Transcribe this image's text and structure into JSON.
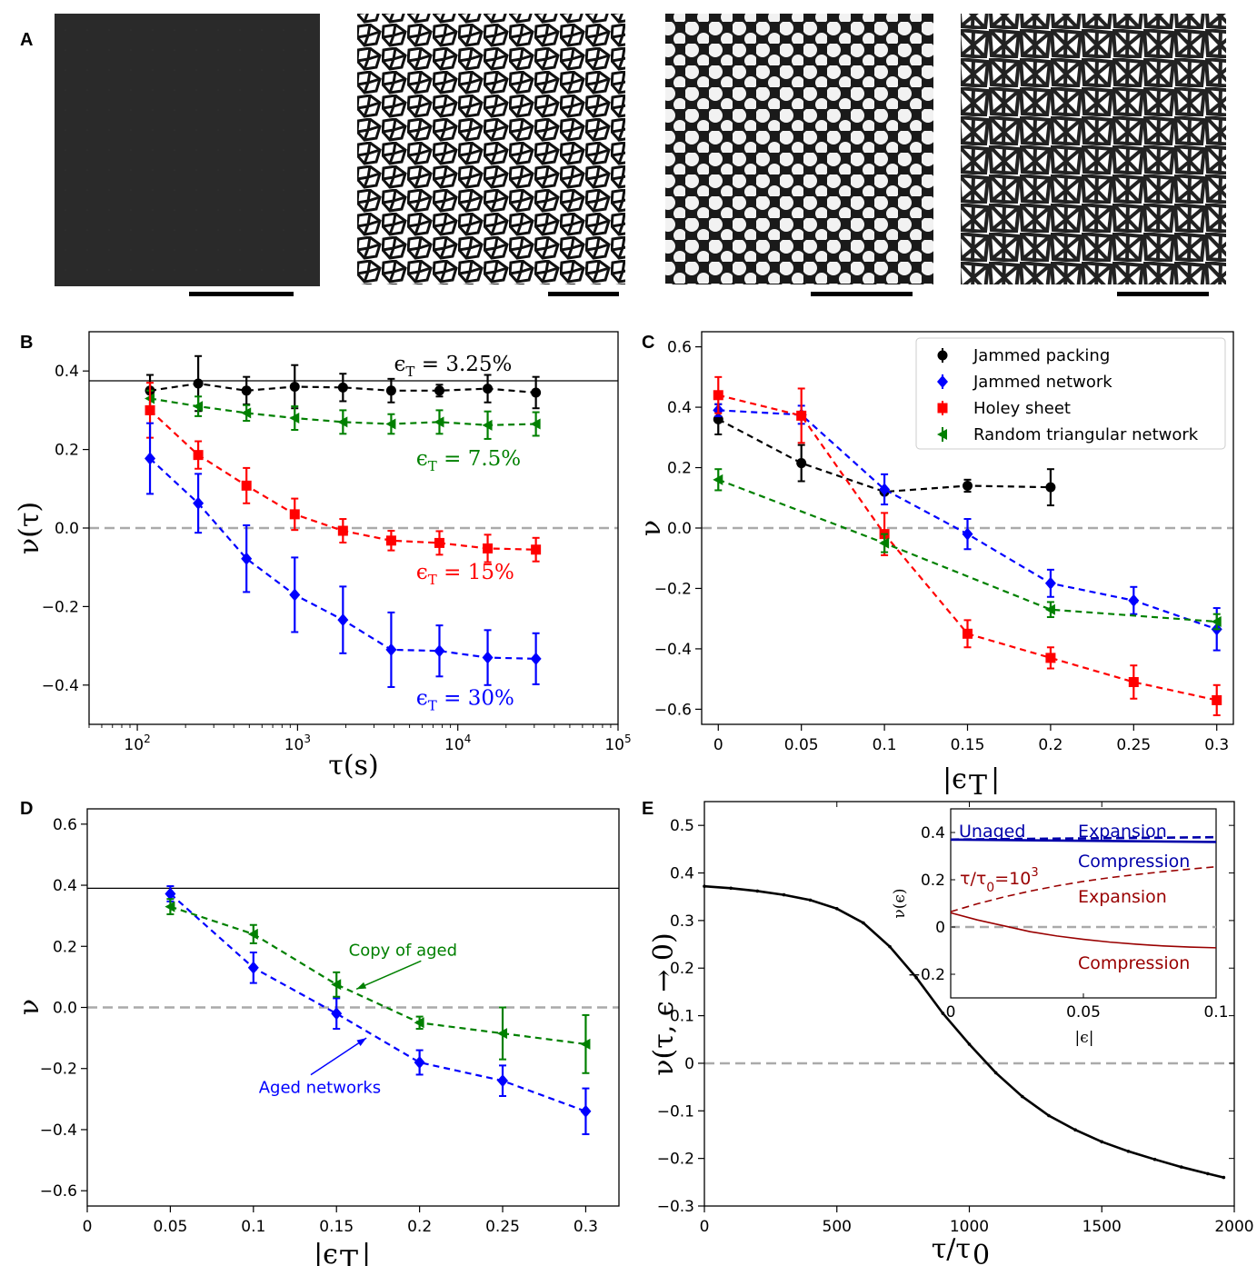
{
  "panel_labels": [
    "A",
    "B",
    "C",
    "D",
    "E"
  ],
  "colors": {
    "black": "#000000",
    "blue": "#0000ff",
    "red": "#ff0000",
    "green": "#008000",
    "gray": "#aaaaaa",
    "darkblue": "#0000aa",
    "darkred": "#990000"
  },
  "chart_data": [
    {
      "panel": "B",
      "type": "line",
      "xscale": "log",
      "xlim": [
        50,
        100000
      ],
      "ylim": [
        -0.5,
        0.5
      ],
      "xlabel": "τ(s)",
      "ylabel": "ν(τ)",
      "xticks": [
        100,
        1000,
        10000,
        100000
      ],
      "xtick_labels": [
        {
          "b": "10",
          "e": "2"
        },
        {
          "b": "10",
          "e": "3"
        },
        {
          "b": "10",
          "e": "4"
        },
        {
          "b": "10",
          "e": "5"
        }
      ],
      "yticks": [
        -0.4,
        -0.2,
        0.0,
        0.2,
        0.4
      ],
      "ytick_labels": [
        "−0.4",
        "−0.2",
        "0.0",
        "0.2",
        "0.4"
      ],
      "hline_solid": 0.375,
      "hline_dashed": 0.0,
      "x": [
        120,
        240,
        480,
        960,
        1920,
        3840,
        7680,
        15360,
        30720
      ],
      "series": [
        {
          "label": "ϵT = 3.25%",
          "color": "black",
          "marker": "circle",
          "values": [
            0.35,
            0.368,
            0.35,
            0.36,
            0.358,
            0.35,
            0.35,
            0.355,
            0.345
          ],
          "errors": [
            0.04,
            0.07,
            0.035,
            0.055,
            0.035,
            0.03,
            0.015,
            0.035,
            0.04
          ]
        },
        {
          "label": "ϵT = 7.5%",
          "color": "green",
          "marker": "triangle",
          "values": [
            0.33,
            0.31,
            0.293,
            0.28,
            0.27,
            0.265,
            0.27,
            0.262,
            0.265
          ],
          "errors": [
            0.02,
            0.025,
            0.02,
            0.03,
            0.03,
            0.025,
            0.03,
            0.035,
            0.03
          ]
        },
        {
          "label": "ϵT = 15%",
          "color": "red",
          "marker": "square",
          "values": [
            0.3,
            0.186,
            0.108,
            0.035,
            -0.007,
            -0.032,
            -0.038,
            -0.052,
            -0.055
          ],
          "errors": [
            0.07,
            0.035,
            0.045,
            0.04,
            0.03,
            0.025,
            0.03,
            0.035,
            0.03
          ]
        },
        {
          "label": "ϵT = 30%",
          "color": "blue",
          "marker": "diamond",
          "values": [
            0.177,
            0.063,
            -0.078,
            -0.17,
            -0.234,
            -0.31,
            -0.313,
            -0.33,
            -0.333
          ],
          "errors": [
            0.09,
            0.075,
            0.085,
            0.095,
            0.085,
            0.095,
            0.065,
            0.07,
            0.065
          ]
        }
      ],
      "annotations": [
        {
          "base": "ϵ",
          "sub": "T",
          "value": " = 3.25%",
          "color": "black",
          "x": 4000,
          "y": 0.4
        },
        {
          "base": "ϵ",
          "sub": "T",
          "value": " = 7.5%",
          "color": "green",
          "x": 5500,
          "y": 0.16
        },
        {
          "base": "ϵ",
          "sub": "T",
          "value": " = 15%",
          "color": "red",
          "x": 5500,
          "y": -0.13
        },
        {
          "base": "ϵ",
          "sub": "T",
          "value": " = 30%",
          "color": "blue",
          "x": 5500,
          "y": -0.45
        }
      ]
    },
    {
      "panel": "C",
      "type": "line",
      "xlim": [
        -0.01,
        0.31
      ],
      "ylim": [
        -0.65,
        0.65
      ],
      "xlabel": "|ϵT|",
      "ylabel": "ν",
      "xticks": [
        0,
        0.05,
        0.1,
        0.15,
        0.2,
        0.25,
        0.3
      ],
      "xtick_labels": [
        "0",
        "0.05",
        "0.1",
        "0.15",
        "0.2",
        "0.25",
        "0.3"
      ],
      "yticks": [
        -0.6,
        -0.4,
        -0.2,
        0.0,
        0.2,
        0.4,
        0.6
      ],
      "ytick_labels": [
        "−0.6",
        "−0.4",
        "−0.2",
        "0.0",
        "0.2",
        "0.4",
        "0.6"
      ],
      "hline_dashed": 0.0,
      "legend": "top-right",
      "series": [
        {
          "name": "Jammed packing",
          "color": "black",
          "marker": "circle",
          "x": [
            0,
            0.05,
            0.1,
            0.15,
            0.2
          ],
          "values": [
            0.36,
            0.215,
            0.12,
            0.14,
            0.135
          ],
          "errors": [
            0.05,
            0.06,
            0.0,
            0.02,
            0.06
          ]
        },
        {
          "name": "Jammed network",
          "color": "blue",
          "marker": "diamond",
          "x": [
            0,
            0.05,
            0.1,
            0.15,
            0.2,
            0.25,
            0.3
          ],
          "values": [
            0.39,
            0.375,
            0.128,
            -0.02,
            -0.183,
            -0.24,
            -0.335
          ],
          "errors": [
            0.02,
            0.03,
            0.05,
            0.05,
            0.045,
            0.045,
            0.07
          ]
        },
        {
          "name": "Holey sheet",
          "color": "red",
          "marker": "square",
          "x": [
            0,
            0.05,
            0.1,
            0.15,
            0.2,
            0.25,
            0.3
          ],
          "values": [
            0.44,
            0.372,
            -0.02,
            -0.35,
            -0.43,
            -0.51,
            -0.57
          ],
          "errors": [
            0.06,
            0.09,
            0.07,
            0.045,
            0.035,
            0.055,
            0.05
          ]
        },
        {
          "name": "Random triangular network",
          "color": "green",
          "marker": "triangle",
          "x": [
            0,
            0.1,
            0.2,
            0.3
          ],
          "values": [
            0.16,
            -0.05,
            -0.27,
            -0.31
          ],
          "errors": [
            0.035,
            0.03,
            0.025,
            0.025
          ]
        }
      ]
    },
    {
      "panel": "D",
      "type": "line",
      "xlim": [
        0,
        0.32
      ],
      "ylim": [
        -0.65,
        0.65
      ],
      "xlabel": "|ϵT|",
      "ylabel": "ν",
      "xticks": [
        0,
        0.05,
        0.1,
        0.15,
        0.2,
        0.25,
        0.3
      ],
      "xtick_labels": [
        "0",
        "0.05",
        "0.1",
        "0.15",
        "0.2",
        "0.25",
        "0.3"
      ],
      "yticks": [
        -0.6,
        -0.4,
        -0.2,
        0.0,
        0.2,
        0.4,
        0.6
      ],
      "ytick_labels": [
        "−0.6",
        "−0.4",
        "−0.2",
        "0.0",
        "0.2",
        "0.4",
        "0.6"
      ],
      "hline_solid": 0.39,
      "hline_dashed": 0.0,
      "x": [
        0.05,
        0.1,
        0.15,
        0.2,
        0.25,
        0.3
      ],
      "series": [
        {
          "color": "blue",
          "marker": "diamond",
          "values": [
            0.372,
            0.13,
            -0.02,
            -0.18,
            -0.24,
            -0.34
          ],
          "errors": [
            0.025,
            0.05,
            0.05,
            0.04,
            0.05,
            0.075
          ]
        },
        {
          "color": "green",
          "marker": "triangle",
          "values": [
            0.33,
            0.24,
            0.075,
            -0.05,
            -0.085,
            -0.12
          ],
          "errors": [
            0.025,
            0.03,
            0.04,
            0.02,
            0.085,
            0.095
          ]
        }
      ],
      "annotations": [
        {
          "text": "Copy of aged",
          "color": "green",
          "x": 0.19,
          "y": 0.17,
          "arrow_to": [
            0.162,
            0.06
          ]
        },
        {
          "text": "Aged networks",
          "color": "blue",
          "x": 0.14,
          "y": -0.28,
          "arrow_to": [
            0.168,
            -0.1
          ]
        }
      ]
    },
    {
      "panel": "E",
      "type": "line",
      "xlim": [
        0,
        2000
      ],
      "ylim": [
        -0.3,
        0.55
      ],
      "xlabel": "τ/τ0",
      "ylabel": "ν(τ, ϵ → 0)",
      "xticks": [
        0,
        500,
        1000,
        1500,
        2000
      ],
      "xtick_labels": [
        "0",
        "500",
        "1000",
        "1500",
        "2000"
      ],
      "yticks": [
        -0.3,
        -0.2,
        -0.1,
        0,
        0.1,
        0.2,
        0.3,
        0.4,
        0.5
      ],
      "ytick_labels": [
        "−0.3",
        "−0.2",
        "−0.1",
        "0",
        "0.1",
        "0.2",
        "0.3",
        "0.4",
        "0.5"
      ],
      "hline_dashed": 0.0,
      "series": [
        {
          "color": "black",
          "x": [
            0,
            100,
            200,
            300,
            400,
            500,
            600,
            700,
            800,
            900,
            1000,
            1100,
            1200,
            1300,
            1400,
            1500,
            1600,
            1700,
            1800,
            1900,
            1960
          ],
          "values": [
            0.372,
            0.368,
            0.362,
            0.354,
            0.343,
            0.325,
            0.295,
            0.245,
            0.18,
            0.105,
            0.04,
            -0.02,
            -0.07,
            -0.11,
            -0.14,
            -0.165,
            -0.185,
            -0.202,
            -0.218,
            -0.232,
            -0.24
          ]
        }
      ],
      "inset": {
        "xlim": [
          0,
          0.1
        ],
        "ylim": [
          -0.3,
          0.5
        ],
        "xlabel": "|ϵ|",
        "ylabel": "ν(ϵ)",
        "xticks": [
          0,
          0.05,
          0.1
        ],
        "xtick_labels": [
          "0",
          "0.05",
          "0.1"
        ],
        "yticks": [
          -0.2,
          0,
          0.2,
          0.4
        ],
        "ytick_labels": [
          "−0.2",
          "0",
          "0.2",
          "0.4"
        ],
        "hline_dashed": 0.0,
        "series": [
          {
            "color": "darkblue",
            "style": "dashed",
            "x": [
              0,
              0.1
            ],
            "values": [
              0.37,
              0.38
            ]
          },
          {
            "color": "darkblue",
            "style": "solid",
            "x": [
              0,
              0.1
            ],
            "values": [
              0.37,
              0.36
            ]
          },
          {
            "color": "darkred",
            "style": "dashed",
            "x": [
              0,
              0.01,
              0.02,
              0.03,
              0.04,
              0.05,
              0.06,
              0.07,
              0.08,
              0.09,
              0.1
            ],
            "values": [
              0.065,
              0.098,
              0.127,
              0.152,
              0.174,
              0.193,
              0.209,
              0.222,
              0.234,
              0.245,
              0.255
            ]
          },
          {
            "color": "darkred",
            "style": "solid",
            "x": [
              0,
              0.01,
              0.02,
              0.03,
              0.04,
              0.05,
              0.06,
              0.07,
              0.08,
              0.09,
              0.1
            ],
            "values": [
              0.06,
              0.03,
              0.005,
              -0.02,
              -0.038,
              -0.052,
              -0.064,
              -0.073,
              -0.08,
              -0.085,
              -0.088
            ]
          }
        ],
        "labels": {
          "unaged": "Unaged",
          "expansion_blue": "Expansion",
          "compression_blue": "Compression",
          "aged_base": "τ/τ",
          "aged_sub": "0",
          "aged_eq": "=10",
          "aged_exp": "3",
          "expansion_red": "Expansion",
          "compression_red": "Compression"
        }
      }
    }
  ]
}
